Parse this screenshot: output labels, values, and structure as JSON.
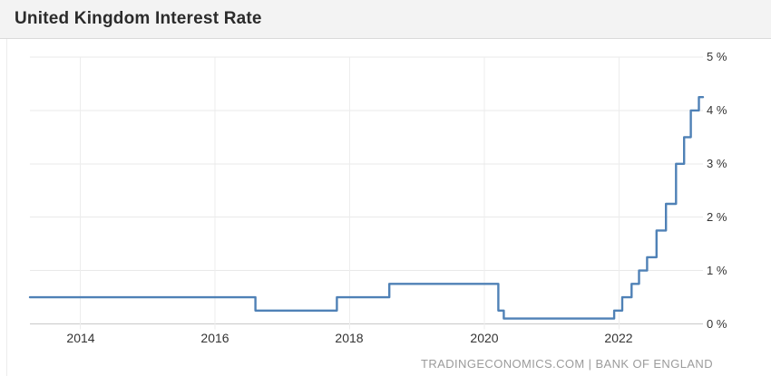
{
  "header": {
    "title": "United Kingdom Interest Rate"
  },
  "footer": {
    "attribution": "TRADINGECONOMICS.COM | BANK OF ENGLAND"
  },
  "chart_data": {
    "type": "line",
    "step": "after",
    "title": "United Kingdom Interest Rate",
    "xlabel": "",
    "ylabel": "",
    "unit": "%",
    "grid": true,
    "legend": "none",
    "xlim": [
      2013.25,
      2023.25
    ],
    "ylim": [
      0,
      5
    ],
    "x_tick_values": [
      2014,
      2016,
      2018,
      2020,
      2022
    ],
    "x_tick_labels": [
      "2014",
      "2016",
      "2018",
      "2020",
      "2022"
    ],
    "y_tick_values": [
      5,
      4,
      3,
      2,
      1,
      0
    ],
    "y_tick_labels": [
      "5 %",
      "4 %",
      "3 %",
      "2 %",
      "1 %",
      "0 %"
    ],
    "colors": {
      "line": "#4f81b6",
      "grid": "#e9e9e9",
      "vgrid": "#ededed",
      "axis": "#c9c9c9",
      "titlebar_bg": "#f3f3f3",
      "footer_text": "#9b9b9b"
    },
    "series": [
      {
        "name": "United Kingdom Interest Rate",
        "color": "#4f81b6",
        "points": [
          [
            2013.25,
            0.5
          ],
          [
            2016.6,
            0.25
          ],
          [
            2017.81,
            0.5
          ],
          [
            2018.59,
            0.75
          ],
          [
            2020.21,
            0.25
          ],
          [
            2020.29,
            0.1
          ],
          [
            2021.93,
            0.25
          ],
          [
            2022.05,
            0.5
          ],
          [
            2022.19,
            0.75
          ],
          [
            2022.3,
            1.0
          ],
          [
            2022.42,
            1.25
          ],
          [
            2022.56,
            1.75
          ],
          [
            2022.7,
            2.25
          ],
          [
            2022.85,
            3.0
          ],
          [
            2022.97,
            3.5
          ],
          [
            2023.07,
            4.0
          ],
          [
            2023.19,
            4.25
          ],
          [
            2023.25,
            4.25
          ]
        ]
      }
    ]
  }
}
